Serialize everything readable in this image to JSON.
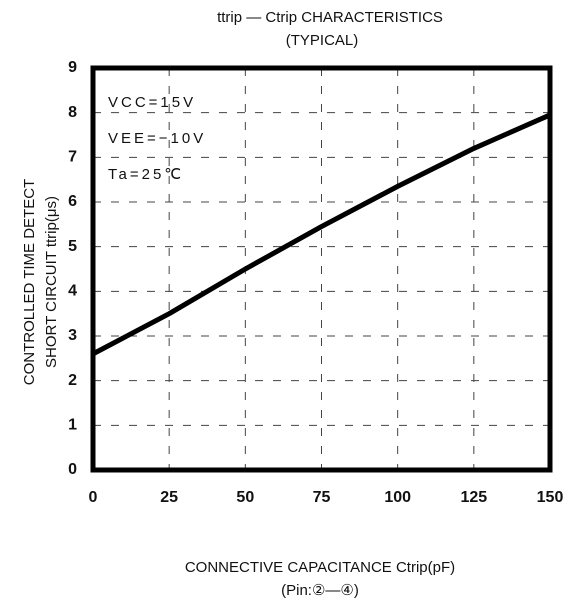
{
  "chart_data": {
    "type": "line",
    "title": "ttrip — Ctrip CHARACTERISTICS",
    "subtitle": "(TYPICAL)",
    "xlabel": [
      "CONNECTIVE CAPACITANCE  Ctrip(pF)",
      "(Pin:②—④)"
    ],
    "ylabel": [
      "CONTROLLED TIME DETECT",
      "SHORT CIRCUIT  ttrip(μs)"
    ],
    "annotations": [
      "VCC=15V",
      "VEE=−10V",
      "Ta=25℃"
    ],
    "x": [
      0,
      25,
      50,
      75,
      100,
      125,
      150
    ],
    "values": [
      2.6,
      3.5,
      4.5,
      5.45,
      6.35,
      7.2,
      7.95
    ],
    "color": "#000000",
    "xlim": [
      0,
      150
    ],
    "xticks": [
      0,
      25,
      50,
      75,
      100,
      125,
      150
    ],
    "ylim": [
      0,
      9
    ],
    "yticks": [
      0,
      1,
      2,
      3,
      4,
      5,
      6,
      7,
      8,
      9
    ],
    "grid": true
  }
}
